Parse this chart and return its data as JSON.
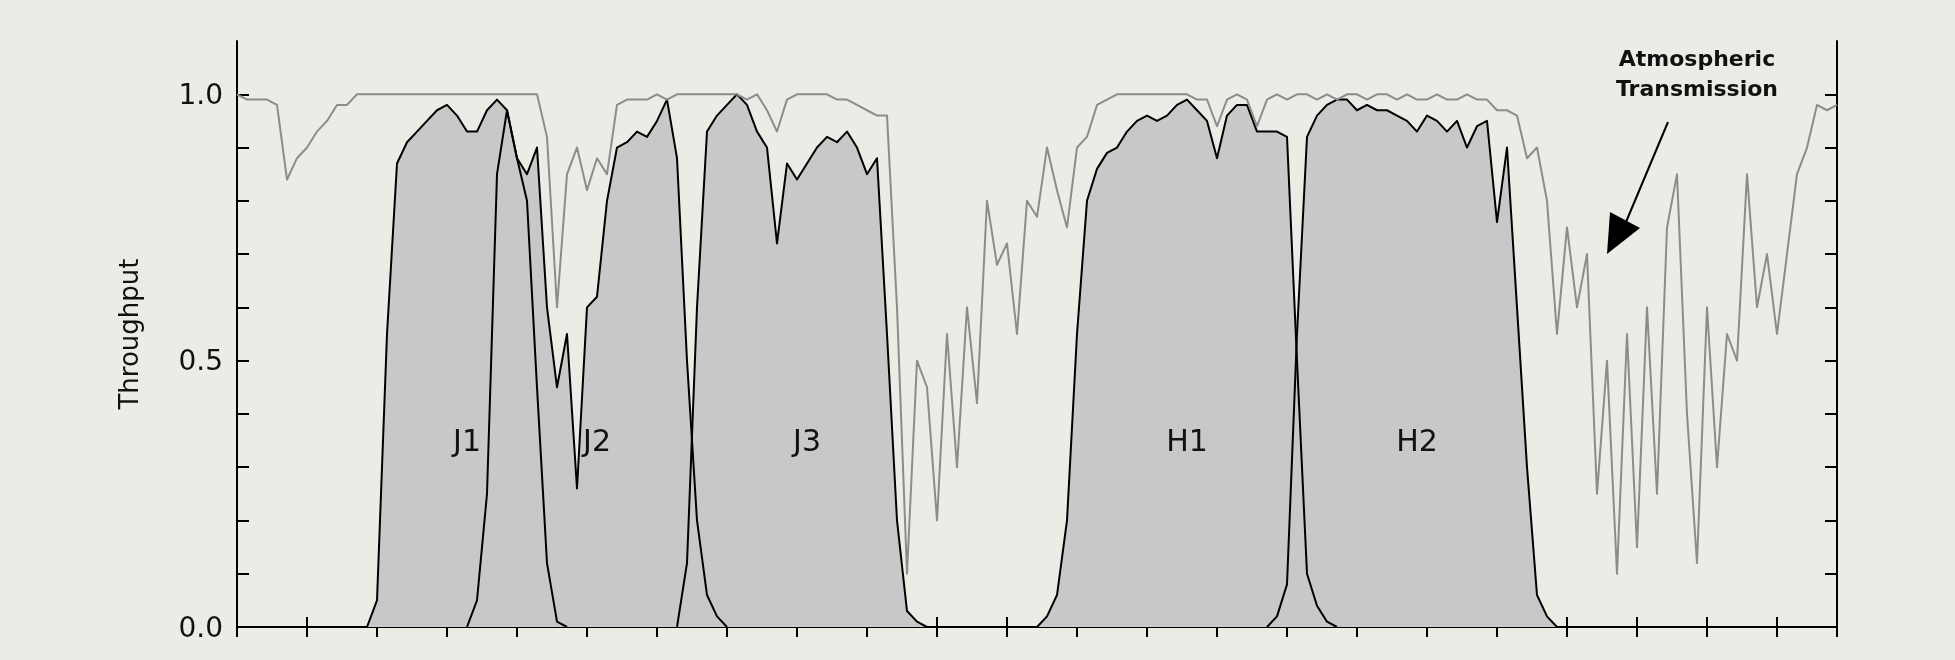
{
  "chart_data": {
    "type": "area",
    "ylabel": "Throughput",
    "tick_labels": "y",
    "grid": false,
    "ylim": [
      0,
      1.1
    ],
    "yticks": [
      {
        "value": 0,
        "label": "0.0"
      },
      {
        "value": 0.1,
        "label": null
      },
      {
        "value": 0.2,
        "label": null
      },
      {
        "value": 0.3,
        "label": null
      },
      {
        "value": 0.4,
        "label": null
      },
      0.5,
      {
        "value": 0.6,
        "label": null
      },
      {
        "value": 0.7,
        "label": null
      },
      {
        "value": 0.8,
        "label": null
      },
      {
        "value": 0.9,
        "label": null
      },
      {
        "value": 1,
        "label": "1.0"
      }
    ],
    "categories": [
      null,
      null,
      null,
      null,
      null,
      null,
      null,
      null,
      null,
      null,
      null,
      null,
      null,
      null,
      null,
      null,
      null,
      null,
      null,
      null,
      null,
      null,
      null,
      null,
      null,
      null,
      null,
      null,
      null,
      null,
      null,
      null,
      null,
      null,
      null,
      null,
      null,
      null,
      null,
      null,
      null,
      null,
      null,
      null,
      null,
      null,
      null,
      null,
      null,
      null,
      null,
      null,
      null,
      null,
      null,
      null,
      null,
      null,
      null,
      null,
      null,
      null,
      null,
      null,
      null,
      null,
      null,
      null,
      null,
      null,
      null,
      null,
      null,
      null,
      null,
      null,
      null,
      null,
      null,
      null,
      null,
      null,
      null,
      null,
      null,
      null,
      null,
      null,
      null,
      null,
      null,
      null,
      null,
      null,
      null,
      null,
      null,
      null,
      null,
      null,
      null,
      null,
      null,
      null,
      null,
      null,
      null,
      null,
      null,
      null,
      null,
      null,
      null,
      null,
      null,
      null,
      null,
      null,
      null,
      null,
      null,
      null,
      null,
      null,
      null,
      null,
      null,
      null,
      null,
      null,
      null,
      null,
      null,
      null,
      null,
      null,
      null,
      null,
      null,
      null,
      null,
      null,
      null,
      null,
      null,
      null,
      null,
      null,
      null,
      null,
      null,
      null,
      null,
      null,
      null,
      null,
      null,
      null,
      null,
      null,
      null
    ],
    "series": [
      {
        "name": "J1",
        "color": "#c8c8c8",
        "values": [
          null,
          null,
          null,
          null,
          null,
          null,
          null,
          null,
          null,
          null,
          null,
          null,
          null,
          0,
          0.05,
          0.55,
          0.87,
          0.91,
          0.93,
          0.95,
          0.97,
          0.98,
          0.96,
          0.93,
          0.93,
          0.97,
          0.99,
          0.97,
          0.88,
          0.8,
          0.45,
          0.12,
          0.01,
          0,
          null,
          null,
          null,
          null,
          null,
          null,
          null,
          null,
          null,
          null,
          null,
          null,
          null,
          null,
          null,
          null,
          null,
          null,
          null,
          null,
          null,
          null,
          null,
          null,
          null,
          null,
          null,
          null,
          null,
          null,
          null,
          null,
          null,
          null,
          null,
          null,
          null,
          null,
          null,
          null,
          null,
          null,
          null,
          null,
          null,
          null,
          null,
          null,
          null,
          null,
          null,
          null,
          null,
          null,
          null,
          null,
          null,
          null,
          null,
          null,
          null,
          null,
          null,
          null,
          null,
          null,
          null,
          null,
          null,
          null,
          null,
          null,
          null,
          null,
          null,
          null,
          null,
          null,
          null,
          null,
          null,
          null,
          null,
          null,
          null,
          null,
          null,
          null,
          null,
          null,
          null,
          null,
          null,
          null,
          null,
          null,
          null,
          null,
          null,
          null,
          null,
          null,
          null,
          null,
          null,
          null,
          null,
          null,
          null,
          null,
          null,
          null,
          null,
          null,
          null,
          null,
          null,
          null,
          null,
          null,
          null,
          null,
          null,
          null,
          null,
          null,
          null
        ]
      },
      {
        "name": "J2",
        "color": "#c8c8c8",
        "values": [
          null,
          null,
          null,
          null,
          null,
          null,
          null,
          null,
          null,
          null,
          null,
          null,
          null,
          null,
          null,
          null,
          null,
          null,
          null,
          null,
          null,
          null,
          null,
          0,
          0.05,
          0.25,
          0.85,
          0.97,
          0.88,
          0.85,
          0.9,
          0.6,
          0.45,
          0.55,
          0.26,
          0.6,
          0.62,
          0.8,
          0.9,
          0.91,
          0.93,
          0.92,
          0.95,
          0.99,
          0.88,
          0.5,
          0.2,
          0.06,
          0.02,
          0,
          null,
          null,
          null,
          null,
          null,
          null,
          null,
          null,
          null,
          null,
          null,
          null,
          null,
          null,
          null,
          null,
          null,
          null,
          null,
          null,
          null,
          null,
          null,
          null,
          null,
          null,
          null,
          null,
          null,
          null,
          null,
          null,
          null,
          null,
          null,
          null,
          null,
          null,
          null,
          null,
          null,
          null,
          null,
          null,
          null,
          null,
          null,
          null,
          null,
          null,
          null,
          null,
          null,
          null,
          null,
          null,
          null,
          null,
          null,
          null,
          null,
          null,
          null,
          null,
          null,
          null,
          null,
          null,
          null,
          null,
          null,
          null,
          null,
          null,
          null,
          null,
          null,
          null,
          null,
          null,
          null,
          null,
          null,
          null,
          null,
          null,
          null,
          null,
          null,
          null,
          null,
          null,
          null,
          null,
          null,
          null,
          null,
          null,
          null,
          null,
          null,
          null,
          null,
          null,
          null,
          null,
          null,
          null,
          null,
          null,
          null
        ]
      },
      {
        "name": "J3",
        "color": "#c8c8c8",
        "values": [
          null,
          null,
          null,
          null,
          null,
          null,
          null,
          null,
          null,
          null,
          null,
          null,
          null,
          null,
          null,
          null,
          null,
          null,
          null,
          null,
          null,
          null,
          null,
          null,
          null,
          null,
          null,
          null,
          null,
          null,
          null,
          null,
          null,
          null,
          null,
          null,
          null,
          null,
          null,
          null,
          null,
          null,
          null,
          null,
          0,
          0.12,
          0.6,
          0.93,
          0.96,
          0.98,
          1.0,
          0.98,
          0.93,
          0.9,
          0.72,
          0.87,
          0.84,
          0.87,
          0.9,
          0.92,
          0.91,
          0.93,
          0.9,
          0.85,
          0.88,
          0.55,
          0.2,
          0.03,
          0.01,
          0,
          null,
          null,
          null,
          null,
          null,
          null,
          null,
          null,
          null,
          null,
          null,
          null,
          null,
          null,
          null,
          null,
          null,
          null,
          null,
          null,
          null,
          null,
          null,
          null,
          null,
          null,
          null,
          null,
          null,
          null,
          null,
          null,
          null,
          null,
          null,
          null,
          null,
          null,
          null,
          null,
          null,
          null,
          null,
          null,
          null,
          null,
          null,
          null,
          null,
          null,
          null,
          null,
          null,
          null,
          null,
          null,
          null,
          null,
          null,
          null,
          null,
          null,
          null,
          null,
          null,
          null,
          null,
          null,
          null,
          null,
          null,
          null,
          null,
          null,
          null,
          null,
          null,
          null,
          null,
          null,
          null,
          null,
          null,
          null,
          null,
          null,
          null,
          null,
          null,
          null,
          null
        ]
      },
      {
        "name": "H1",
        "color": "#c8c8c8",
        "values": [
          null,
          null,
          null,
          null,
          null,
          null,
          null,
          null,
          null,
          null,
          null,
          null,
          null,
          null,
          null,
          null,
          null,
          null,
          null,
          null,
          null,
          null,
          null,
          null,
          null,
          null,
          null,
          null,
          null,
          null,
          null,
          null,
          null,
          null,
          null,
          null,
          null,
          null,
          null,
          null,
          null,
          null,
          null,
          null,
          null,
          null,
          null,
          null,
          null,
          null,
          null,
          null,
          null,
          null,
          null,
          null,
          null,
          null,
          null,
          null,
          null,
          null,
          null,
          null,
          null,
          null,
          null,
          null,
          null,
          null,
          null,
          null,
          null,
          null,
          null,
          null,
          null,
          null,
          null,
          null,
          0,
          0.02,
          0.06,
          0.2,
          0.55,
          0.8,
          0.86,
          0.89,
          0.9,
          0.93,
          0.95,
          0.96,
          0.95,
          0.96,
          0.98,
          0.99,
          0.97,
          0.95,
          0.88,
          0.96,
          0.98,
          0.98,
          0.93,
          0.93,
          0.93,
          0.92,
          0.5,
          0.1,
          0.04,
          0.01,
          0,
          null,
          null,
          null,
          null,
          null,
          null,
          null,
          null,
          null,
          null,
          null,
          null,
          null,
          null,
          null,
          null,
          null,
          null,
          null,
          null,
          null,
          null,
          null,
          null,
          null,
          null,
          null,
          null,
          null,
          null,
          null,
          null,
          null,
          null,
          null,
          null,
          null,
          null,
          null,
          null,
          null,
          null,
          null,
          null,
          null,
          null,
          null,
          null,
          null,
          null
        ]
      },
      {
        "name": "H2",
        "color": "#c8c8c8",
        "values": [
          null,
          null,
          null,
          null,
          null,
          null,
          null,
          null,
          null,
          null,
          null,
          null,
          null,
          null,
          null,
          null,
          null,
          null,
          null,
          null,
          null,
          null,
          null,
          null,
          null,
          null,
          null,
          null,
          null,
          null,
          null,
          null,
          null,
          null,
          null,
          null,
          null,
          null,
          null,
          null,
          null,
          null,
          null,
          null,
          null,
          null,
          null,
          null,
          null,
          null,
          null,
          null,
          null,
          null,
          null,
          null,
          null,
          null,
          null,
          null,
          null,
          null,
          null,
          null,
          null,
          null,
          null,
          null,
          null,
          null,
          null,
          null,
          null,
          null,
          null,
          null,
          null,
          null,
          null,
          null,
          null,
          null,
          null,
          null,
          null,
          null,
          null,
          null,
          null,
          null,
          null,
          null,
          null,
          null,
          null,
          null,
          null,
          null,
          null,
          null,
          null,
          null,
          null,
          0,
          0.02,
          0.08,
          0.55,
          0.92,
          0.96,
          0.98,
          0.99,
          0.99,
          0.97,
          0.98,
          0.97,
          0.97,
          0.96,
          0.95,
          0.93,
          0.96,
          0.95,
          0.93,
          0.95,
          0.9,
          0.94,
          0.95,
          0.76,
          0.9,
          0.6,
          0.3,
          0.06,
          0.02,
          0,
          null,
          null,
          null,
          null,
          null,
          null,
          null,
          null,
          null,
          null,
          null,
          null,
          null,
          null,
          null,
          null,
          null,
          null,
          null,
          null,
          null,
          null,
          null,
          null,
          null,
          null,
          null,
          null
        ]
      },
      {
        "name": "Atmospheric Transmission",
        "type": "line",
        "color": "#8c8c8c",
        "values": [
          1.0,
          0.99,
          0.99,
          0.99,
          0.98,
          0.84,
          0.88,
          0.9,
          0.93,
          0.95,
          0.98,
          0.98,
          1.0,
          1.0,
          1.0,
          1.0,
          1.0,
          1.0,
          1.0,
          1.0,
          1.0,
          1.0,
          1.0,
          1.0,
          1.0,
          1.0,
          1.0,
          1.0,
          1.0,
          1.0,
          1.0,
          0.92,
          0.6,
          0.85,
          0.9,
          0.82,
          0.88,
          0.85,
          0.98,
          0.99,
          0.99,
          0.99,
          1.0,
          0.99,
          1.0,
          1.0,
          1.0,
          1.0,
          1.0,
          1.0,
          1.0,
          0.99,
          1.0,
          0.97,
          0.93,
          0.99,
          1.0,
          1.0,
          1.0,
          1.0,
          0.99,
          0.99,
          0.98,
          0.97,
          0.96,
          0.96,
          0.6,
          0.1,
          0.5,
          0.45,
          0.2,
          0.55,
          0.3,
          0.6,
          0.42,
          0.8,
          0.68,
          0.72,
          0.55,
          0.8,
          0.77,
          0.9,
          0.82,
          0.75,
          0.9,
          0.92,
          0.98,
          0.99,
          1.0,
          1.0,
          1.0,
          1.0,
          1.0,
          1.0,
          1.0,
          1.0,
          0.99,
          0.99,
          0.94,
          0.99,
          1.0,
          0.99,
          0.94,
          0.99,
          1.0,
          0.99,
          1.0,
          1.0,
          0.99,
          1.0,
          0.99,
          1.0,
          1.0,
          0.99,
          1.0,
          1.0,
          0.99,
          1.0,
          0.99,
          0.99,
          1.0,
          0.99,
          0.99,
          1.0,
          0.99,
          0.99,
          0.97,
          0.97,
          0.96,
          0.88,
          0.9,
          0.8,
          0.55,
          0.75,
          0.6,
          0.7,
          0.25,
          0.5,
          0.1,
          0.55,
          0.15,
          0.6,
          0.25,
          0.75,
          0.85,
          0.4,
          0.12,
          0.6,
          0.3,
          0.55,
          0.5,
          0.85,
          0.6,
          0.7,
          0.55,
          0.7,
          0.85,
          0.9,
          0.98,
          0.97,
          0.98
        ]
      }
    ]
  }
}
